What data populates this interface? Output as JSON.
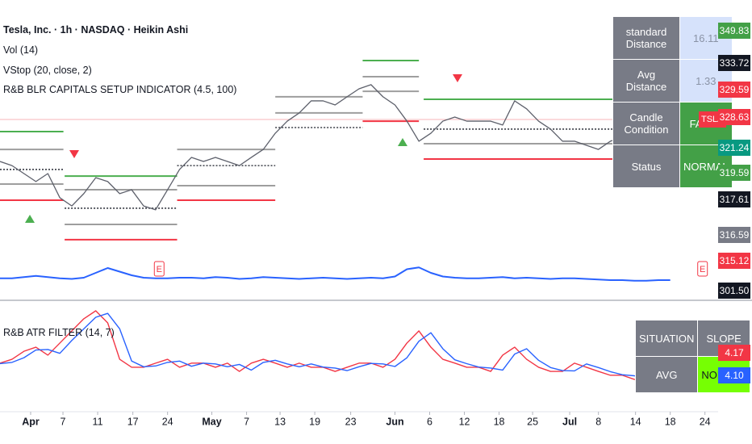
{
  "chart_data": [
    {
      "type": "line",
      "title": "Tesla, Inc. · 1h · NASDAQ · Heikin Ashi",
      "indicators": [
        "Vol (14)",
        "VStop (20, close, 2)",
        "R&B BLR CAPITALS SETUP INDICATOR (4.5, 100)"
      ],
      "x": [
        0,
        1,
        2,
        3,
        4,
        5,
        6,
        7,
        8,
        9,
        10,
        11,
        12,
        13,
        14,
        15,
        16,
        17,
        18,
        19,
        20,
        21,
        22,
        23,
        24,
        25,
        26,
        27,
        28,
        29,
        30,
        31,
        32,
        33,
        34,
        35,
        36,
        37,
        38,
        39,
        40,
        41,
        42,
        43,
        44,
        45,
        46,
        47,
        48,
        49,
        50,
        51,
        52,
        53,
        54,
        55,
        56
      ],
      "xlim": [
        0,
        60
      ],
      "ylim": [
        270,
        355
      ],
      "series": [
        {
          "color": "#5d606b",
          "values": [
            305.4,
            303.6,
            300.1,
            296.6,
            300.1,
            289.5,
            285.9,
            291.3,
            298.3,
            296.6,
            291.3,
            293.0,
            285.9,
            284.2,
            293.0,
            301.9,
            307.2,
            305.4,
            307.2,
            305.4,
            303.6,
            307.2,
            310.7,
            317.8,
            323.1,
            326.7,
            332.0,
            332.0,
            330.2,
            333.8,
            337.3,
            339.1,
            333.8,
            330.2,
            323.1,
            314.3,
            317.8,
            323.1,
            324.9,
            323.1,
            323.1,
            323.1,
            321.4,
            332.0,
            328.5,
            323.1,
            319.6,
            314.3,
            314.3,
            312.5,
            310.7,
            314.3,
            316.0,
            317.8,
            319.6,
            321.4,
            323.1
          ]
        }
      ],
      "levels": [
        {
          "x": [
            0,
            5.3
          ],
          "value": 318.5,
          "color": "#4caf50",
          "dotted": false
        },
        {
          "x": [
            0,
            5.3
          ],
          "value": 310.7,
          "color": "#9e9e9e",
          "dotted": false
        },
        {
          "x": [
            0,
            5.3
          ],
          "value": 301.9,
          "color": "#131722",
          "dotted": true
        },
        {
          "x": [
            0,
            5.3
          ],
          "value": 295.5,
          "color": "#9e9e9e",
          "dotted": false
        },
        {
          "x": [
            0,
            5.3
          ],
          "value": 288.4,
          "color": "#f23645",
          "dotted": false
        },
        {
          "x": [
            5.4,
            14.8
          ],
          "value": 299.0,
          "color": "#4caf50",
          "dotted": false
        },
        {
          "x": [
            5.4,
            14.8
          ],
          "value": 293.0,
          "color": "#9e9e9e",
          "dotted": false
        },
        {
          "x": [
            5.4,
            14.8
          ],
          "value": 284.9,
          "color": "#131722",
          "dotted": true
        },
        {
          "x": [
            5.4,
            14.8
          ],
          "value": 277.8,
          "color": "#9e9e9e",
          "dotted": false
        },
        {
          "x": [
            5.4,
            14.8
          ],
          "value": 271.1,
          "color": "#f23645",
          "dotted": false
        },
        {
          "x": [
            14.8,
            23
          ],
          "value": 310.7,
          "color": "#9e9e9e",
          "dotted": false
        },
        {
          "x": [
            14.8,
            23
          ],
          "value": 303.6,
          "color": "#131722",
          "dotted": true
        },
        {
          "x": [
            14.8,
            23
          ],
          "value": 294.8,
          "color": "#9e9e9e",
          "dotted": false
        },
        {
          "x": [
            14.8,
            23
          ],
          "value": 288.4,
          "color": "#f23645",
          "dotted": false
        },
        {
          "x": [
            23,
            30.3
          ],
          "value": 333.8,
          "color": "#9e9e9e",
          "dotted": false
        },
        {
          "x": [
            23,
            30.3
          ],
          "value": 326.7,
          "color": "#9e9e9e",
          "dotted": false
        },
        {
          "x": [
            23,
            30.3
          ],
          "value": 320.3,
          "color": "#131722",
          "dotted": true
        },
        {
          "x": [
            30.3,
            35
          ],
          "value": 349.7,
          "color": "#4caf50",
          "dotted": false
        },
        {
          "x": [
            30.3,
            35
          ],
          "value": 342.6,
          "color": "#9e9e9e",
          "dotted": false
        },
        {
          "x": [
            30.3,
            35
          ],
          "value": 336.2,
          "color": "#9e9e9e",
          "dotted": false
        },
        {
          "x": [
            30.3,
            35
          ],
          "value": 323.1,
          "color": "#f23645",
          "dotted": false
        },
        {
          "x": [
            35.4,
            51.6
          ],
          "value": 332.7,
          "color": "#4caf50",
          "dotted": false
        },
        {
          "x": [
            35.4,
            51.6
          ],
          "value": 319.6,
          "color": "#131722",
          "dotted": true
        },
        {
          "x": [
            35.4,
            51.6
          ],
          "value": 313.2,
          "color": "#9e9e9e",
          "dotted": false
        },
        {
          "x": [
            35.4,
            51.6
          ],
          "value": 306.5,
          "color": "#f23645",
          "dotted": false
        }
      ],
      "volume_ma": {
        "color": "#2962ff",
        "ylim": [
          0,
          100
        ],
        "values": [
          27,
          27,
          29,
          31,
          29,
          27,
          26,
          28,
          36,
          44,
          38,
          32,
          28,
          27,
          27,
          28,
          28,
          27,
          29,
          28,
          26,
          27,
          29,
          28,
          27,
          26,
          27,
          28,
          27,
          26,
          27,
          28,
          27,
          30,
          42,
          45,
          36,
          30,
          28,
          27,
          27,
          28,
          29,
          27,
          28,
          27,
          26,
          27,
          27,
          26,
          25,
          24,
          24,
          23,
          23,
          24,
          24
        ]
      },
      "earnings": [
        {
          "x": 13.3,
          "label": "E"
        },
        {
          "x": 58.7,
          "label": "E"
        }
      ]
    },
    {
      "type": "line",
      "title": "R&B ATR FILTER (14, 7)",
      "x": [
        0,
        1,
        2,
        3,
        4,
        5,
        6,
        7,
        8,
        9,
        10,
        11,
        12,
        13,
        14,
        15,
        16,
        17,
        18,
        19,
        20,
        21,
        22,
        23,
        24,
        25,
        26,
        27,
        28,
        29,
        30,
        31,
        32,
        33,
        34,
        35,
        36,
        37,
        38,
        39,
        40,
        41,
        42,
        43,
        44,
        45,
        46,
        47,
        48,
        49,
        50,
        51,
        52,
        53,
        54,
        55,
        56
      ],
      "xlim": [
        0,
        60
      ],
      "ylim": [
        3.2,
        6.8
      ],
      "series": [
        {
          "color": "#f23645",
          "values": [
            4.77,
            4.92,
            5.23,
            5.39,
            5.08,
            5.55,
            6.02,
            6.49,
            6.8,
            6.33,
            4.92,
            4.61,
            4.61,
            4.77,
            4.92,
            4.61,
            4.77,
            4.77,
            4.61,
            4.77,
            4.45,
            4.77,
            4.92,
            4.77,
            4.61,
            4.77,
            4.61,
            4.61,
            4.45,
            4.61,
            4.77,
            4.77,
            4.61,
            4.92,
            5.55,
            6.02,
            5.39,
            4.92,
            4.77,
            4.61,
            4.61,
            4.45,
            5.08,
            5.39,
            4.92,
            4.61,
            4.45,
            4.45,
            4.77,
            4.61,
            4.45,
            4.3,
            4.3,
            4.14,
            4.08,
            4.14,
            4.17
          ]
        },
        {
          "color": "#2962ff",
          "values": [
            4.75,
            4.8,
            4.98,
            5.28,
            5.3,
            5.15,
            5.65,
            6.1,
            6.55,
            6.7,
            6.1,
            4.85,
            4.63,
            4.66,
            4.8,
            4.85,
            4.65,
            4.77,
            4.74,
            4.63,
            4.72,
            4.5,
            4.8,
            4.88,
            4.74,
            4.63,
            4.74,
            4.62,
            4.58,
            4.48,
            4.63,
            4.76,
            4.74,
            4.64,
            4.98,
            5.62,
            5.95,
            5.33,
            4.9,
            4.75,
            4.62,
            4.58,
            4.5,
            5.12,
            5.33,
            4.88,
            4.6,
            4.48,
            4.47,
            4.74,
            4.6,
            4.44,
            4.32,
            4.28,
            4.15,
            4.1,
            4.1
          ]
        }
      ],
      "value_tags": [
        {
          "label": "4.17",
          "color": "#f23645"
        },
        {
          "label": "4.10",
          "color": "#2962ff"
        }
      ],
      "xticks": [
        {
          "value": 2.56,
          "label": "Apr"
        },
        {
          "value": 5.26,
          "label": "7"
        },
        {
          "value": 8.16,
          "label": "11"
        },
        {
          "value": 11.1,
          "label": "17"
        },
        {
          "value": 14.0,
          "label": "24"
        },
        {
          "value": 17.7,
          "label": "May"
        },
        {
          "value": 20.6,
          "label": "7"
        },
        {
          "value": 23.4,
          "label": "13"
        },
        {
          "value": 26.3,
          "label": "19"
        },
        {
          "value": 29.3,
          "label": "23"
        },
        {
          "value": 33.0,
          "label": "Jun"
        },
        {
          "value": 35.9,
          "label": "6"
        },
        {
          "value": 38.8,
          "label": "12"
        },
        {
          "value": 41.7,
          "label": "18"
        },
        {
          "value": 44.5,
          "label": "25"
        },
        {
          "value": 47.6,
          "label": "Jul"
        },
        {
          "value": 50.0,
          "label": "8"
        },
        {
          "value": 53.1,
          "label": "14"
        },
        {
          "value": 56.0,
          "label": "18"
        },
        {
          "value": 58.9,
          "label": "24"
        }
      ]
    }
  ],
  "price_tags": [
    {
      "label": "349.83",
      "color": "#43a047"
    },
    {
      "label": "333.72",
      "color": "#131722"
    },
    {
      "label": "329.59",
      "color": "#f23645"
    },
    {
      "label": "328.63",
      "color": "#f23645"
    },
    {
      "label": "321.24",
      "color": "#089981"
    },
    {
      "label": "319.59",
      "color": "#43a047"
    },
    {
      "label": "317.61",
      "color": "#131722"
    },
    {
      "label": "316.59",
      "color": "#787b86"
    },
    {
      "label": "315.12",
      "color": "#f23645"
    },
    {
      "label": "301.50",
      "color": "#131722"
    }
  ],
  "symbol_tag": "TSLA",
  "info_table": {
    "rows": [
      [
        "standard Distance",
        "16.11"
      ],
      [
        "Avg Distance",
        "1.33"
      ],
      [
        "Candle Condition",
        "FALSE"
      ],
      [
        "Status",
        "NORMAL"
      ]
    ]
  },
  "atr_table": {
    "rows": [
      [
        "SITUATION",
        "SLOPE"
      ],
      [
        "AVG",
        "NORMAL"
      ]
    ]
  }
}
